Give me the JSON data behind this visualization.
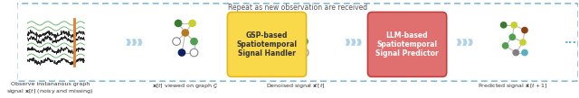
{
  "title_text": "Repeat as new observation are received",
  "bg_color": "#ffffff",
  "dashed_box_color": "#6baed6",
  "gsp_box_color": "#f9d84a",
  "gsp_box_edge": "#e0b820",
  "llm_box_color": "#e07070",
  "llm_box_edge": "#c04040",
  "arrow_color": "#a8cce8",
  "label1": "Observe instananous graph\nsignal $\\mathbf{x}[t]$ (noisy and missing)",
  "label2": "$\\mathbf{x}[t]$ viewed on graph $\\mathcal{G}$",
  "label3": "Denoised signal $\\hat{\\mathbf{x}}\\,[t]$",
  "label4": "Predicted signal $\\hat{\\mathbf{x}}\\,[t+1]$",
  "gsp_text": "GSP-based\nSpatiotemporal\nSignal Handler",
  "llm_text": "LLM-based\nSpatiotemporal\nSignal Predictor",
  "wave_colors_top": [
    "#5aaa5a",
    "#5aaa5a"
  ],
  "wave_colors_mid": [
    "#222222",
    "#222222",
    "#222222",
    "#222222"
  ],
  "wave_colors_bot": [
    "#5aaa5a",
    "#222222",
    "#5aaa5a",
    "#222222"
  ]
}
